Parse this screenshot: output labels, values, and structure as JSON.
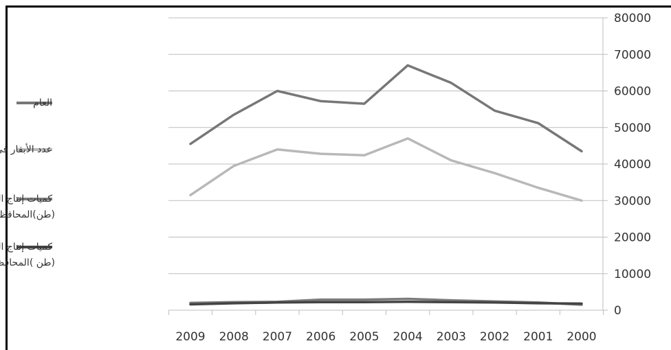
{
  "chart_data": {
    "type": "line",
    "categories": [
      "2009",
      "2008",
      "2007",
      "2006",
      "2005",
      "2004",
      "2003",
      "2002",
      "2001",
      "2000"
    ],
    "ylim": [
      0,
      80000
    ],
    "yticks": [
      0,
      10000,
      20000,
      30000,
      40000,
      50000,
      60000,
      70000,
      80000
    ],
    "grid": true,
    "legend_position": "left",
    "series": [
      {
        "name": "العام",
        "color": "#777777",
        "values": [
          45500,
          53500,
          60000,
          57200,
          56500,
          67000,
          62200,
          54600,
          51200,
          43500
        ]
      },
      {
        "name": "عدد الأبقار في",
        "color": "#b8b8b8",
        "values": [
          31500,
          39500,
          44000,
          42800,
          42400,
          47000,
          41000,
          37500,
          33500,
          30000
        ]
      },
      {
        "name": "كميات إنتاج الحليب الأبقار في (طن)المحافظة",
        "name_lines": [
          "كميات إنتاج الحليب الأبقار في",
          "(طن)المحافظة"
        ],
        "color": "#7a7a7a",
        "values": [
          2000,
          2200,
          2300,
          2900,
          2900,
          3100,
          2700,
          2400,
          2100,
          1500
        ]
      },
      {
        "name": "كميات إنتاج اللحوم الأبقار في (طن )المحافظة",
        "name_lines": [
          "كميات إنتاج اللحوم الأبقار في",
          "(طن )المحافظة"
        ],
        "color": "#444444",
        "values": [
          1600,
          1900,
          2100,
          2200,
          2200,
          2300,
          2200,
          2100,
          1900,
          1800
        ]
      }
    ]
  }
}
